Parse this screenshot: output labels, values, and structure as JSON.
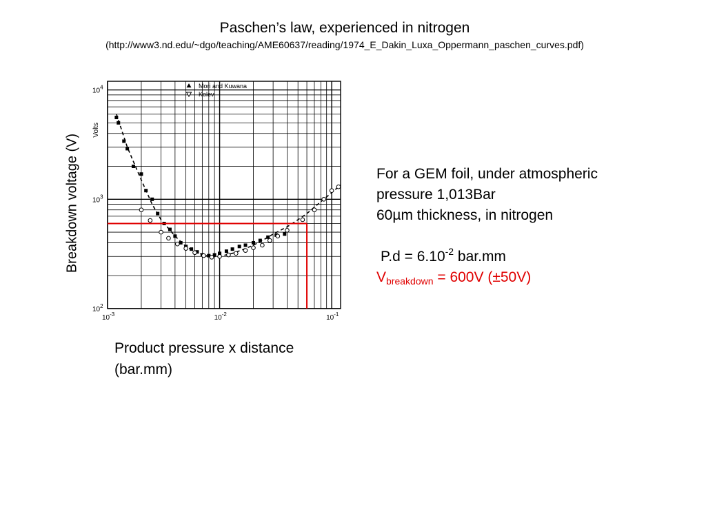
{
  "slide": {
    "title": "Paschen’s law, experienced in nitrogen",
    "source": "(http://www3.nd.edu/~dgo/teaching/AME60637/reading/1974_E_Dakin_Luxa_Oppermann_paschen_curves.pdf)"
  },
  "axis_titles": {
    "y": "Breakdown voltage (V)",
    "x_line1": "Product pressure x distance",
    "x_line2": "(bar.mm)"
  },
  "note": {
    "line1": "For a GEM foil, under atmospheric",
    "line2": "pressure 1,013Bar",
    "line3": "60µm thickness, in nitrogen",
    "pd_prefix": "P.d = 6.10",
    "pd_exp": "-2",
    "pd_unit": " bar.mm",
    "v_main": "V",
    "v_sub": "breakdown",
    "v_value": " = 600V (±50V)"
  },
  "colors": {
    "marker_line": "#e00000",
    "ink": "#000000"
  },
  "chart_data": {
    "type": "scatter",
    "xscale": "log",
    "yscale": "log",
    "xlim": [
      0.001,
      0.12
    ],
    "ylim": [
      100,
      12000
    ],
    "grid": true,
    "legend": "top",
    "ylabel": "Volts",
    "x_ticks": [
      {
        "value": 0.001,
        "base": "10",
        "exp": "-3"
      },
      {
        "value": 0.01,
        "base": "10",
        "exp": "-2"
      },
      {
        "value": 0.1,
        "base": "10",
        "exp": "-1"
      }
    ],
    "y_ticks": [
      {
        "value": 100,
        "base": "10",
        "exp": "2"
      },
      {
        "value": 1000,
        "base": "10",
        "exp": "3"
      },
      {
        "value": 10000,
        "base": "10",
        "exp": "4"
      }
    ],
    "series": [
      {
        "name": "Mori and Kuwana",
        "marker": "filled",
        "points": [
          [
            0.0012,
            5600
          ],
          [
            0.00125,
            5000
          ],
          [
            0.0014,
            3400
          ],
          [
            0.0015,
            2900
          ],
          [
            0.0017,
            2000
          ],
          [
            0.002,
            1700
          ],
          [
            0.0022,
            1200
          ],
          [
            0.0025,
            1000
          ],
          [
            0.0028,
            740
          ],
          [
            0.0032,
            600
          ],
          [
            0.0036,
            530
          ],
          [
            0.004,
            460
          ],
          [
            0.0045,
            400
          ],
          [
            0.005,
            370
          ],
          [
            0.0056,
            350
          ],
          [
            0.0063,
            330
          ],
          [
            0.007,
            310
          ],
          [
            0.008,
            305
          ],
          [
            0.009,
            310
          ],
          [
            0.01,
            320
          ],
          [
            0.0115,
            335
          ],
          [
            0.013,
            350
          ],
          [
            0.015,
            370
          ],
          [
            0.017,
            380
          ],
          [
            0.02,
            400
          ],
          [
            0.023,
            420
          ],
          [
            0.027,
            450
          ],
          [
            0.032,
            470
          ],
          [
            0.038,
            480
          ]
        ]
      },
      {
        "name": "Kolev",
        "marker": "open",
        "points": [
          [
            0.002,
            800
          ],
          [
            0.0024,
            640
          ],
          [
            0.003,
            500
          ],
          [
            0.0035,
            440
          ],
          [
            0.0042,
            390
          ],
          [
            0.005,
            355
          ],
          [
            0.006,
            325
          ],
          [
            0.0072,
            305
          ],
          [
            0.0085,
            295
          ],
          [
            0.01,
            300
          ],
          [
            0.012,
            310
          ],
          [
            0.014,
            320
          ],
          [
            0.017,
            340
          ],
          [
            0.02,
            360
          ],
          [
            0.024,
            380
          ],
          [
            0.028,
            420
          ],
          [
            0.033,
            460
          ],
          [
            0.04,
            520
          ],
          [
            0.055,
            650
          ],
          [
            0.07,
            800
          ],
          [
            0.085,
            1000
          ],
          [
            0.1,
            1200
          ],
          [
            0.115,
            1300
          ]
        ]
      }
    ],
    "fit_curve": [
      [
        0.0012,
        6000
      ],
      [
        0.0015,
        3000
      ],
      [
        0.002,
        1500
      ],
      [
        0.0025,
        900
      ],
      [
        0.003,
        650
      ],
      [
        0.004,
        460
      ],
      [
        0.005,
        370
      ],
      [
        0.006,
        330
      ],
      [
        0.008,
        300
      ],
      [
        0.01,
        300
      ],
      [
        0.013,
        320
      ],
      [
        0.016,
        345
      ],
      [
        0.02,
        380
      ],
      [
        0.025,
        430
      ],
      [
        0.03,
        480
      ],
      [
        0.04,
        560
      ],
      [
        0.05,
        650
      ],
      [
        0.06,
        740
      ],
      [
        0.08,
        950
      ],
      [
        0.1,
        1150
      ],
      [
        0.12,
        1350
      ]
    ],
    "marker_point": {
      "x": 0.06,
      "y": 600
    }
  }
}
